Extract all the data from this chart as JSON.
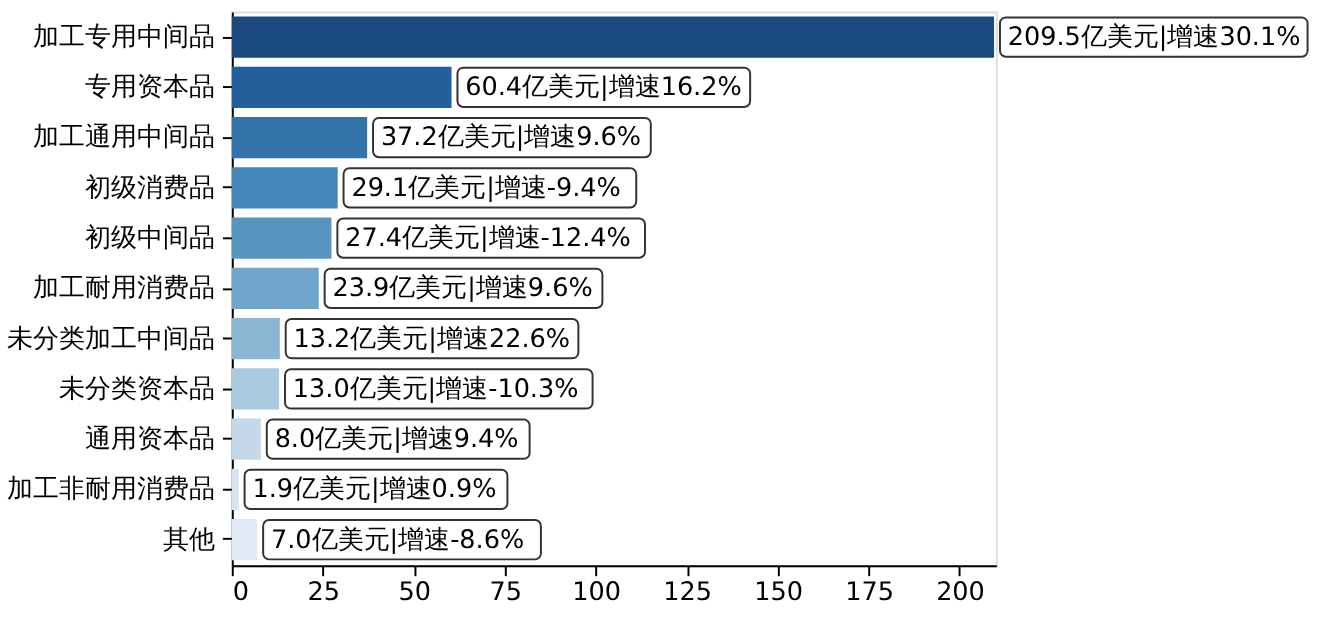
{
  "chart_data": {
    "type": "bar",
    "orientation": "horizontal",
    "categories": [
      "加工专用中间品",
      "专用资本品",
      "加工通用中间品",
      "初级消费品",
      "初级中间品",
      "加工耐用消费品",
      "未分类加工中间品",
      "未分类资本品",
      "通用资本品",
      "加工非耐用消费品",
      "其他"
    ],
    "values": [
      209.5,
      60.4,
      37.2,
      29.1,
      27.4,
      23.9,
      13.2,
      13.0,
      8.0,
      1.9,
      7.0
    ],
    "colors": [
      "#1b4a7e",
      "#245f9c",
      "#3373aa",
      "#4585b7",
      "#5795c0",
      "#6fa5ca",
      "#8ab6d3",
      "#a9c9de",
      "#c5d8e9",
      "#d5e3f0",
      "#e2ebf5"
    ],
    "value_labels": [
      "209.5亿美元|增速30.1%",
      "60.4亿美元|增速16.2%",
      "37.2亿美元|增速9.6%",
      "29.1亿美元|增速-9.4%",
      "27.4亿美元|增速-12.4%",
      "23.9亿美元|增速9.6%",
      "13.2亿美元|增速22.6%",
      "13.0亿美元|增速-10.3%",
      "8.0亿美元|增速9.4%",
      "1.9亿美元|增速0.9%",
      "7.0亿美元|增速-8.6%"
    ],
    "xlim": [
      0,
      210
    ],
    "xticks": [
      0,
      25,
      50,
      75,
      100,
      125,
      150,
      175,
      200
    ],
    "grid": false
  }
}
